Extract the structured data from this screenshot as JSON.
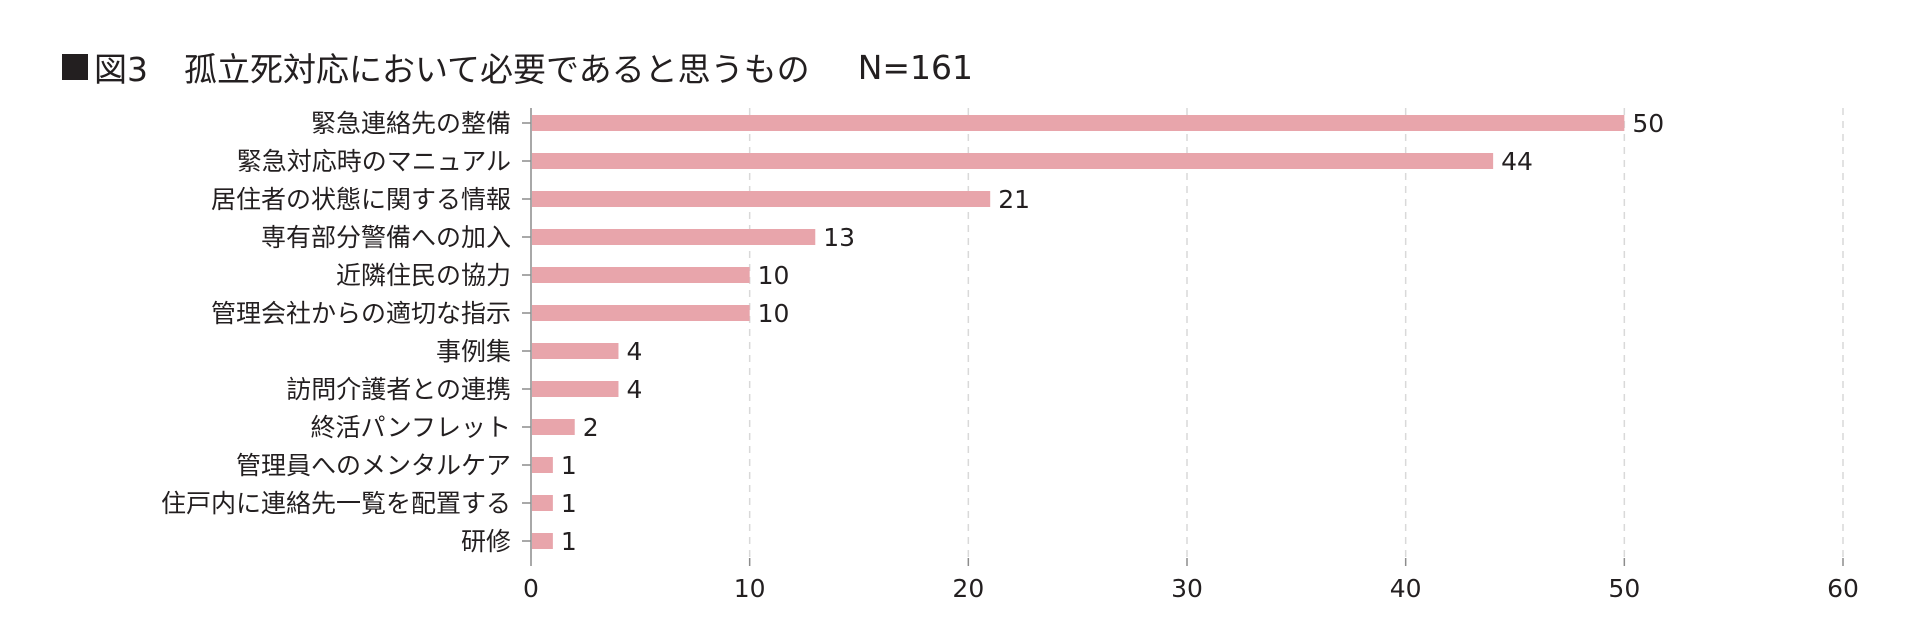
{
  "title": {
    "prefix": "図3",
    "main": "孤立死対応において必要であると思うもの",
    "n": "N=161"
  },
  "colors": {
    "bar": "#e8a5ab",
    "text": "#231f20",
    "grid": "#d9d9d9",
    "axis": "#8c8c8c"
  },
  "chart_data": {
    "type": "bar",
    "orientation": "horizontal",
    "title": "孤立死対応において必要であると思うもの",
    "categories": [
      "緊急連絡先の整備",
      "緊急対応時のマニュアル",
      "居住者の状態に関する情報",
      "専有部分警備への加入",
      "近隣住民の協力",
      "管理会社からの適切な指示",
      "事例集",
      "訪問介護者との連携",
      "終活パンフレット",
      "管理員へのメンタルケア",
      "住戸内に連絡先一覧を配置する",
      "研修"
    ],
    "values": [
      50,
      44,
      21,
      13,
      10,
      10,
      4,
      4,
      2,
      1,
      1,
      1
    ],
    "xlim": [
      0,
      60
    ],
    "xticks": [
      0,
      10,
      20,
      30,
      40,
      50,
      60
    ],
    "grid": true,
    "grid_style": "dashed-vertical",
    "data_labels": true,
    "legend": "none"
  }
}
